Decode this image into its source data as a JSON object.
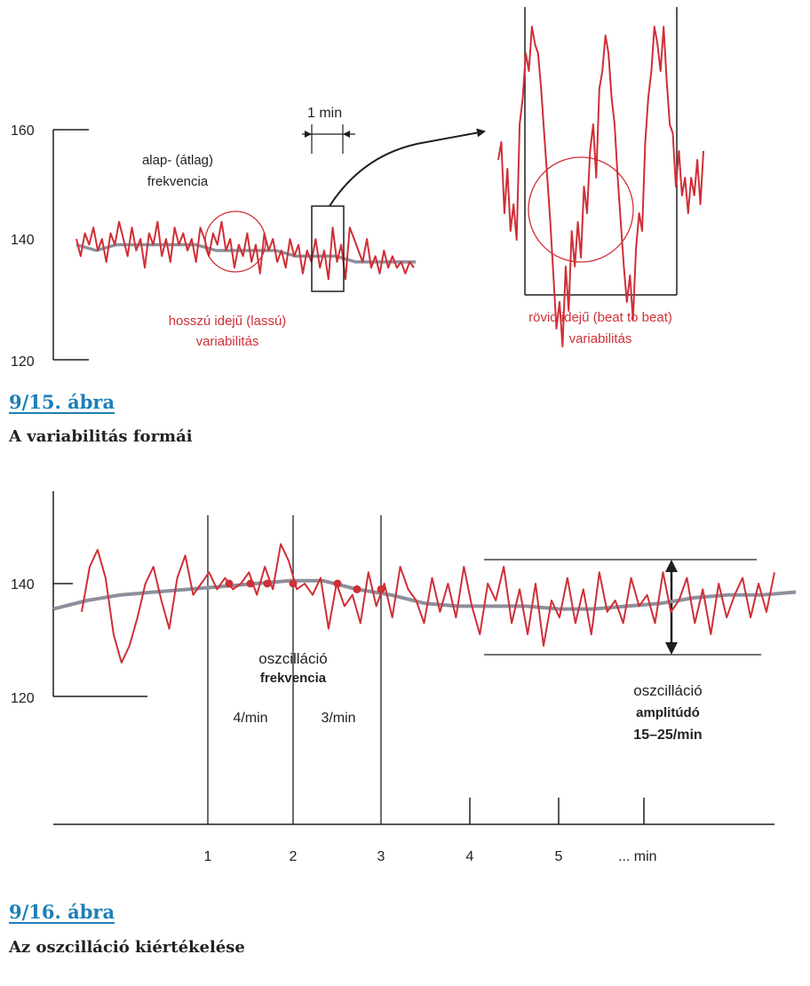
{
  "figures": [
    {
      "label": "9/15. ábra",
      "caption": "A variabilitás formái"
    },
    {
      "label": "9/16. ábra",
      "caption": "Az oszcilláció kiértékelése"
    }
  ],
  "colors": {
    "trace": "#cf2f36",
    "baseline": "#8d8f9c",
    "axis": "#1e1e1e",
    "caption": "#1d7fb6"
  },
  "chart_data": [
    {
      "type": "line",
      "y_ticks": [
        "160",
        "140",
        "120"
      ],
      "ylim": [
        120,
        160
      ],
      "scale_label": "1 min",
      "annotations": {
        "baseline_line1": "alap- (átlag)",
        "baseline_line2": "frekvencia",
        "long_line1": "hosszú idejű (lassú)",
        "long_line2": "variabilitás",
        "short_line1": "rövid idejű (beat to beat)",
        "short_line2": "variabilitás"
      },
      "series": [
        {
          "values": [
            141,
            138,
            142,
            140,
            143,
            139,
            141,
            137,
            142,
            140,
            144,
            141,
            138,
            143,
            139,
            141,
            136,
            142,
            140,
            144,
            138,
            141,
            137,
            143,
            140,
            142,
            139,
            141,
            137,
            143,
            141,
            138,
            142,
            140,
            144,
            139,
            141,
            136,
            140,
            138,
            142,
            137,
            140,
            135,
            142,
            139,
            141,
            137,
            139,
            136,
            141,
            138,
            140,
            135,
            139,
            137,
            141,
            136,
            139,
            134,
            143,
            137,
            140,
            134,
            143,
            141,
            139,
            137,
            141,
            136,
            138,
            135,
            139,
            136,
            138,
            136,
            137,
            135,
            137,
            136
          ]
        },
        {
          "values": [
            140,
            139,
            140,
            140,
            140,
            140,
            140,
            139,
            139,
            139,
            139,
            138,
            138,
            138,
            137,
            137,
            137,
            137
          ]
        }
      ],
      "zoom_series": {
        "values": [
          148,
          150,
          142,
          147,
          140,
          143,
          139,
          152,
          155,
          160,
          158,
          163,
          161,
          160,
          156,
          151,
          146,
          141,
          135,
          129,
          132,
          127,
          136,
          131,
          140,
          136,
          141,
          137,
          145,
          142,
          149,
          152,
          146,
          156,
          158,
          162,
          160,
          155,
          152,
          146,
          141,
          136,
          132,
          135,
          130,
          138,
          142,
          140,
          150,
          155,
          158,
          163,
          161,
          158,
          163,
          157,
          152,
          151,
          145,
          149,
          144,
          146,
          142,
          146,
          144,
          148,
          143,
          149
        ]
      }
    },
    {
      "type": "line",
      "y_ticks": [
        "140",
        "120"
      ],
      "ylim": [
        120,
        150
      ],
      "x_ticks": [
        "1",
        "2",
        "3",
        "4",
        "5",
        "... min"
      ],
      "annotations": {
        "freq_line1": "oszcilláció",
        "freq_line2": "frekvencia",
        "rate_a": "4/min",
        "rate_b": "3/min",
        "amp_line1": "oszcilláció",
        "amp_line2": "amplitúdó",
        "amp_line3": "15–25/min"
      },
      "series": [
        {
          "values": [
            135,
            143,
            146,
            141,
            131,
            126,
            129,
            134,
            140,
            143,
            137,
            132,
            141,
            145,
            138,
            140,
            142,
            139,
            141,
            139,
            140,
            142,
            138,
            143,
            139,
            147,
            144,
            139,
            140,
            138,
            141,
            132,
            140,
            136,
            138,
            133,
            142,
            136,
            140,
            134,
            143,
            139,
            137,
            133,
            141,
            135,
            140,
            134,
            143,
            136,
            131,
            140,
            137,
            143,
            133,
            139,
            131,
            140,
            129,
            137,
            134,
            141,
            133,
            139,
            131,
            142,
            135,
            137,
            133,
            141,
            136,
            138,
            133,
            142,
            135,
            137,
            141,
            133,
            139,
            131,
            140,
            134,
            138,
            141,
            134,
            140,
            135,
            142
          ]
        },
        {
          "values": [
            135.5,
            137,
            138,
            138.5,
            139,
            139.5,
            140,
            140.5,
            140.5,
            139,
            138,
            136.5,
            136,
            136,
            136,
            135.5,
            135.5,
            136,
            136.5,
            137.5,
            138,
            138,
            138.5
          ]
        }
      ],
      "markers": {
        "values": [
          140,
          140,
          140,
          140,
          140,
          139,
          139,
          138
        ]
      }
    }
  ]
}
